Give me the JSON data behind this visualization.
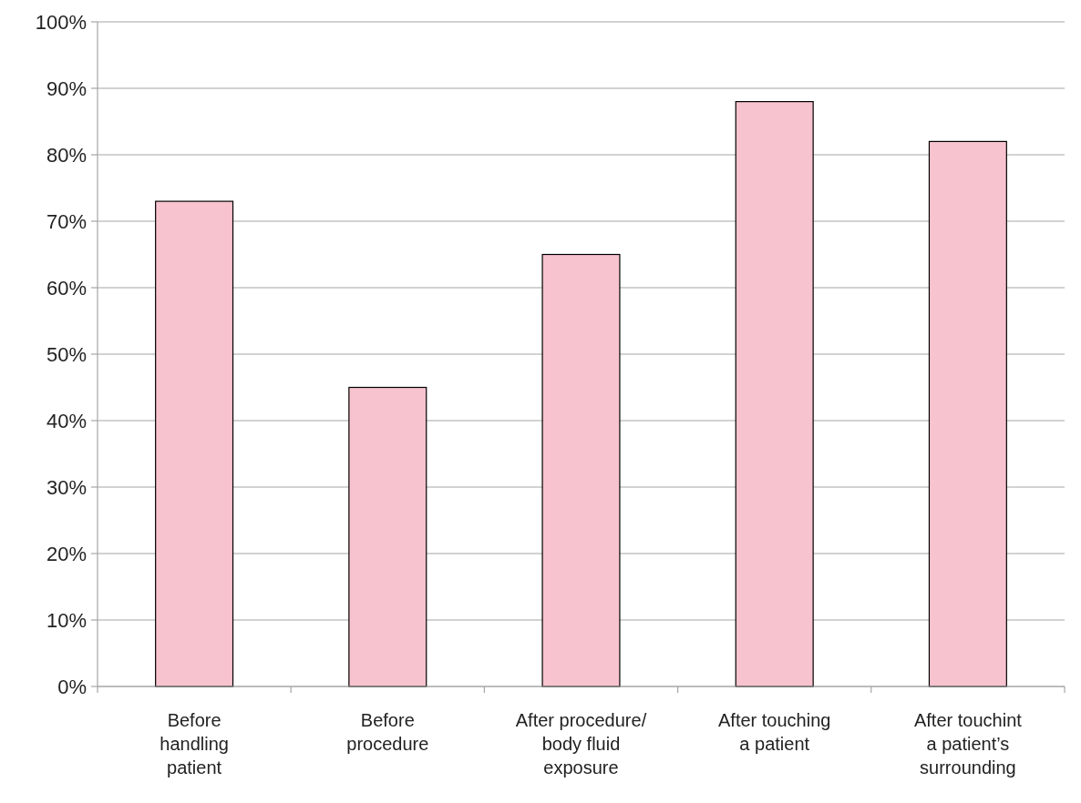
{
  "chart_data": {
    "type": "bar",
    "categories": [
      "Before\nhandling\npatient",
      "Before\nprocedure",
      "After procedure/\nbody fluid\nexposure",
      "After touching\na patient",
      "After touchint\na patient’s\nsurrounding"
    ],
    "values": [
      73,
      45,
      65,
      88,
      82
    ],
    "color": "#f7c3cf",
    "ylim": [
      0,
      100
    ],
    "yticks": [
      {
        "value": 0,
        "label": "0%"
      },
      {
        "value": 10,
        "label": "10%"
      },
      {
        "value": 20,
        "label": "20%"
      },
      {
        "value": 30,
        "label": "30%"
      },
      {
        "value": 40,
        "label": "40%"
      },
      {
        "value": 50,
        "label": "50%"
      },
      {
        "value": 60,
        "label": "60%"
      },
      {
        "value": 70,
        "label": "70%"
      },
      {
        "value": 80,
        "label": "80%"
      },
      {
        "value": 90,
        "label": "90%"
      },
      {
        "value": 100,
        "label": "100%"
      }
    ],
    "grid": "y"
  }
}
